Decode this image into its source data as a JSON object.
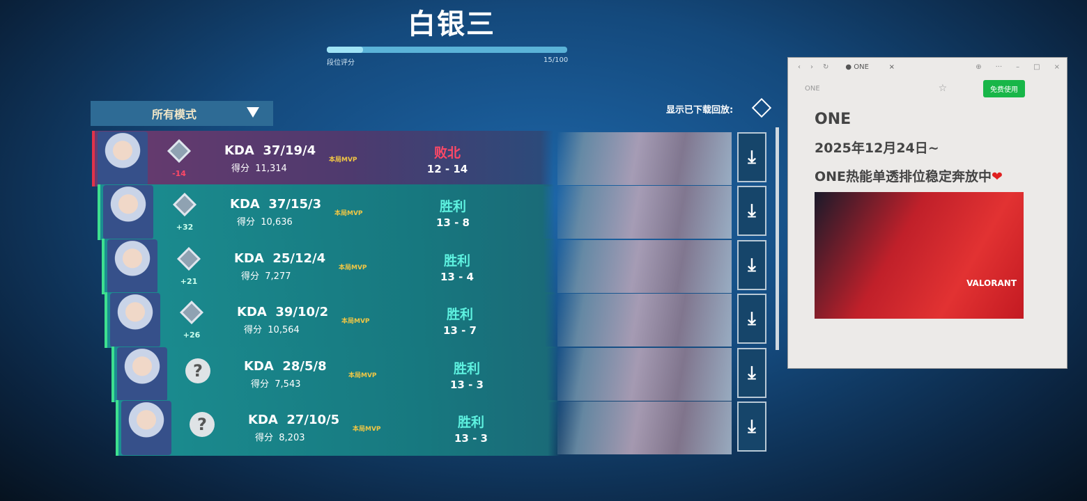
{
  "rank": {
    "title": "白银三",
    "progress_label": "段位评分",
    "progress_value": "15/100",
    "progress_fraction": 0.15
  },
  "filter": {
    "mode_label": "所有模式"
  },
  "show_downloaded_label": "显示已下载回放:",
  "kda_label": "KDA",
  "score_label": "得分",
  "mvp_label": "本局MVP",
  "matches": [
    {
      "result": "败北",
      "kda": "37/19/4",
      "score": "11,314",
      "rr": "-14",
      "score_line": "12 - 14",
      "rank_known": true
    },
    {
      "result": "胜利",
      "kda": "37/15/3",
      "score": "10,636",
      "rr": "+32",
      "score_line": "13 - 8",
      "rank_known": true
    },
    {
      "result": "胜利",
      "kda": "25/12/4",
      "score": "7,277",
      "rr": "+21",
      "score_line": "13 - 4",
      "rank_known": true
    },
    {
      "result": "胜利",
      "kda": "39/10/2",
      "score": "10,564",
      "rr": "+26",
      "score_line": "13 - 7",
      "rank_known": true
    },
    {
      "result": "胜利",
      "kda": "28/5/8",
      "score": "7,543",
      "rr": "",
      "score_line": "13 - 3",
      "rank_known": false
    },
    {
      "result": "胜利",
      "kda": "27/10/5",
      "score": "8,203",
      "rr": "",
      "score_line": "13 - 3",
      "rank_known": false
    }
  ],
  "browser": {
    "tab_title": "ONE",
    "site_name": "ONE",
    "cta": "免费使用",
    "line1": "ONE",
    "line2": "2025年12月24日~",
    "line3": "ONE热能单透排位稳定奔放中",
    "banner_text": "VALORANT"
  },
  "colors": {
    "win": "#5ef2e0",
    "loss": "#ff4866",
    "win_bar": "#3ee08f",
    "loss_bar": "#e0334a"
  }
}
